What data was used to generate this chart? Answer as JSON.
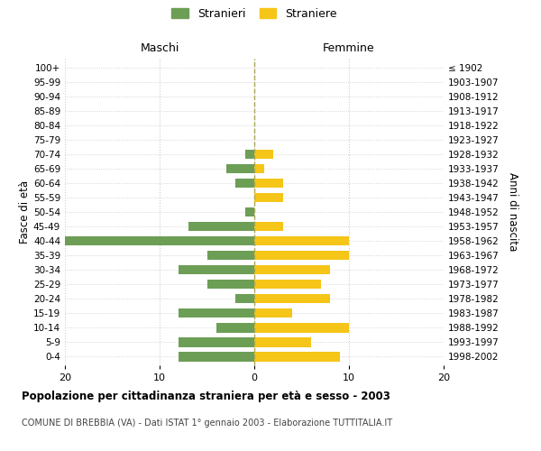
{
  "age_groups": [
    "0-4",
    "5-9",
    "10-14",
    "15-19",
    "20-24",
    "25-29",
    "30-34",
    "35-39",
    "40-44",
    "45-49",
    "50-54",
    "55-59",
    "60-64",
    "65-69",
    "70-74",
    "75-79",
    "80-84",
    "85-89",
    "90-94",
    "95-99",
    "100+"
  ],
  "birth_years": [
    "1998-2002",
    "1993-1997",
    "1988-1992",
    "1983-1987",
    "1978-1982",
    "1973-1977",
    "1968-1972",
    "1963-1967",
    "1958-1962",
    "1953-1957",
    "1948-1952",
    "1943-1947",
    "1938-1942",
    "1933-1937",
    "1928-1932",
    "1923-1927",
    "1918-1922",
    "1913-1917",
    "1908-1912",
    "1903-1907",
    "≤ 1902"
  ],
  "males": [
    8,
    8,
    4,
    8,
    2,
    5,
    8,
    5,
    20,
    7,
    1,
    0,
    2,
    3,
    1,
    0,
    0,
    0,
    0,
    0,
    0
  ],
  "females": [
    9,
    6,
    10,
    4,
    8,
    7,
    8,
    10,
    10,
    3,
    0,
    3,
    3,
    1,
    2,
    0,
    0,
    0,
    0,
    0,
    0
  ],
  "male_color": "#6d9e56",
  "female_color": "#f5c518",
  "background_color": "#ffffff",
  "grid_color": "#cccccc",
  "title": "Popolazione per cittadinanza straniera per età e sesso - 2003",
  "subtitle": "COMUNE DI BREBBIA (VA) - Dati ISTAT 1° gennaio 2003 - Elaborazione TUTTITALIA.IT",
  "xlabel_left": "Maschi",
  "xlabel_right": "Femmine",
  "ylabel_left": "Fasce di età",
  "ylabel_right": "Anni di nascita",
  "legend_male": "Stranieri",
  "legend_female": "Straniere",
  "xlim": 20
}
